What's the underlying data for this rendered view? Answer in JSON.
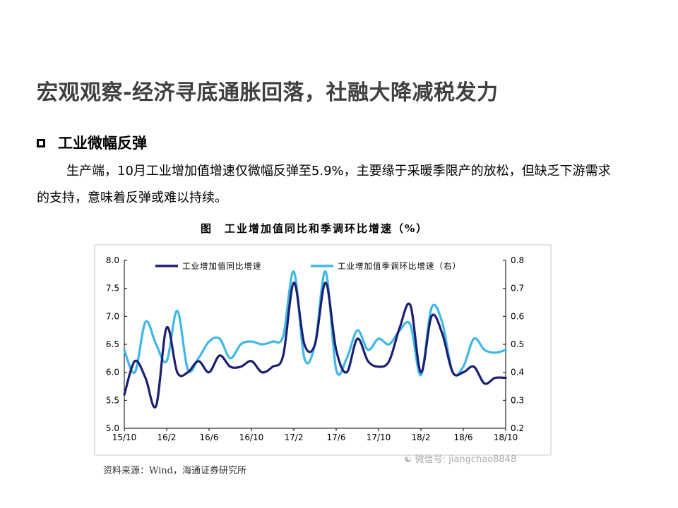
{
  "slide": {
    "title": "宏观观察-经济寻底通胀回落，社融大降减税发力",
    "section_title": "工业微幅反弹",
    "body": "生产端，10月工业增加值增速仅微幅反弹至5.9%，主要缘于采暖季限产的放松，但缺乏下游需求的支持，意味着反弹或难以持续。"
  },
  "figure": {
    "caption": "图　工业增加值同比和季调环比增速（%）",
    "source": "资料来源：Wind，海通证券研究所"
  },
  "watermark": {
    "text": "微信号: jiangchao8848",
    "icon": "wechat-icon"
  },
  "chart_data": {
    "type": "line",
    "title": "",
    "x": [
      "15/10",
      "15/11",
      "15/12",
      "16/1",
      "16/2",
      "16/3",
      "16/4",
      "16/5",
      "16/6",
      "16/7",
      "16/8",
      "16/9",
      "16/10",
      "16/11",
      "16/12",
      "17/1",
      "17/2",
      "17/3",
      "17/4",
      "17/5",
      "17/6",
      "17/7",
      "17/8",
      "17/9",
      "17/10",
      "17/11",
      "17/12",
      "18/1",
      "18/2",
      "18/3",
      "18/4",
      "18/5",
      "18/6",
      "18/7",
      "18/8",
      "18/9",
      "18/10"
    ],
    "xticks": [
      "15/10",
      "16/2",
      "16/6",
      "16/10",
      "17/2",
      "17/6",
      "17/10",
      "18/2",
      "18/6",
      "18/10"
    ],
    "y_left": {
      "ylim": [
        5.0,
        8.0
      ],
      "ticks": [
        "5.0",
        "5.5",
        "6.0",
        "6.5",
        "7.0",
        "7.5",
        "8.0"
      ]
    },
    "y_right": {
      "ylim": [
        0.2,
        0.8
      ],
      "ticks": [
        "0.2",
        "0.3",
        "0.4",
        "0.5",
        "0.6",
        "0.7",
        "0.8"
      ]
    },
    "series": [
      {
        "name": "工业增加值同比增速",
        "axis": "left",
        "color": "#1a1f6e",
        "values": [
          5.6,
          6.2,
          5.9,
          5.4,
          6.8,
          6.0,
          6.0,
          6.2,
          6.0,
          6.3,
          6.1,
          6.1,
          6.2,
          6.0,
          6.1,
          6.3,
          7.6,
          6.5,
          6.5,
          7.6,
          6.4,
          6.0,
          6.6,
          6.2,
          6.1,
          6.2,
          6.8,
          7.2,
          6.0,
          7.0,
          6.7,
          6.0,
          6.0,
          6.1,
          5.8,
          5.9,
          5.9
        ]
      },
      {
        "name": "工业增加值季调环比增速（右）",
        "axis": "right",
        "color": "#3fb8e8",
        "values": [
          0.48,
          0.4,
          0.58,
          0.5,
          0.44,
          0.62,
          0.41,
          0.45,
          0.51,
          0.52,
          0.45,
          0.5,
          0.51,
          0.5,
          0.51,
          0.53,
          0.76,
          0.45,
          0.5,
          0.76,
          0.41,
          0.45,
          0.55,
          0.48,
          0.52,
          0.5,
          0.55,
          0.57,
          0.39,
          0.63,
          0.58,
          0.4,
          0.42,
          0.52,
          0.48,
          0.47,
          0.48
        ]
      }
    ],
    "legend": "top",
    "grid": false
  }
}
